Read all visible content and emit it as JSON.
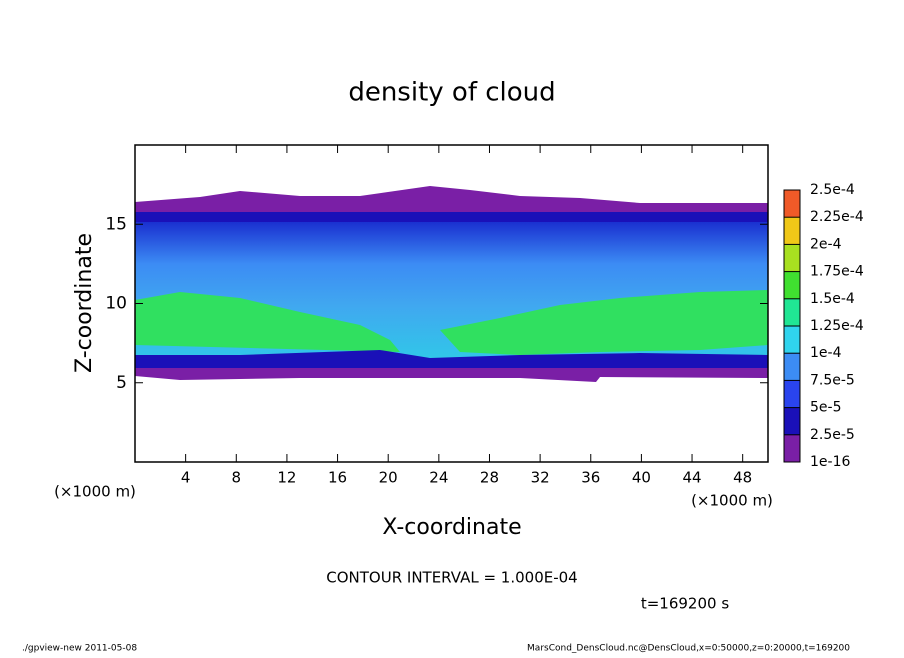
{
  "chart_data": {
    "type": "contour",
    "title": "density of cloud",
    "xlabel": "X-coordinate",
    "ylabel": "Z-coordinate",
    "x_unit": "(×1000 m)",
    "xlim": [
      0,
      50
    ],
    "xticks": [
      4,
      8,
      12,
      16,
      20,
      24,
      28,
      32,
      36,
      40,
      44,
      48
    ],
    "ylim": [
      0,
      20
    ],
    "yticks": [
      5,
      10,
      15
    ],
    "colorbar_ticks": [
      1e-16,
      {
        "value": 2.5e-05,
        "label": "2.5e-5"
      },
      {
        "value": 5e-05,
        "label": "5e-5"
      },
      {
        "value": 7.5e-05,
        "label": "7.5e-5"
      },
      {
        "value": 0.0001,
        "label": "1e-4"
      },
      {
        "value": 0.000125,
        "label": "1.25e-4"
      },
      {
        "value": 0.00015,
        "label": "1.5e-4"
      },
      {
        "value": 0.000175,
        "label": "1.75e-4"
      },
      {
        "value": 0.0002,
        "label": "2e-4"
      },
      {
        "value": 0.000225,
        "label": "2.25e-4"
      },
      {
        "value": 0.00025,
        "label": "2.5e-4"
      }
    ],
    "colors": [
      "#7a1fa6",
      "#1a10b8",
      "#2a44ee",
      "#3c8cf4",
      "#30d4ee",
      "#20e694",
      "#40e030",
      "#a8e020",
      "#f0c818",
      "#f05a28"
    ],
    "contour_interval": "CONTOUR INTERVAL = 1.000E-04",
    "time": "t=169200 s",
    "footer_left": "./gpview-new   2011-05-08",
    "footer_right": "MarsCond_DensCloud.nc@DensCloud,x=0:50000,z=0:20000,t=169200"
  }
}
